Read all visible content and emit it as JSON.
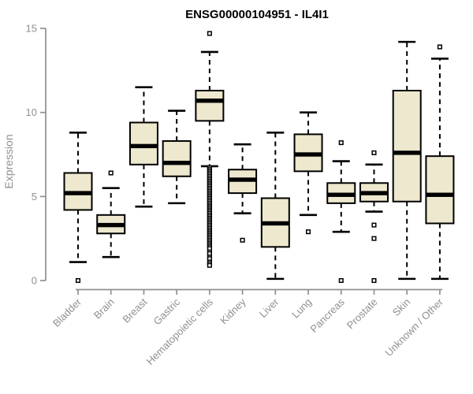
{
  "colors": {
    "background": "#ffffff",
    "box_fill": "#ede8ce",
    "box_border": "#000000",
    "median_line": "#000000",
    "whisker": "#000000",
    "outlier_stroke": "#000000",
    "outlier_fill": "#ffffff",
    "axis_line": "#909090",
    "tick_label": "#909090",
    "title_text": "#000000"
  },
  "chart_data": {
    "type": "boxplot",
    "title": "ENSG00000104951 - IL4I1",
    "xlabel": "",
    "ylabel": "Expression",
    "ylim": [
      0,
      15
    ],
    "yticks": [
      0,
      5,
      10,
      15
    ],
    "grid": "off",
    "legend": "none",
    "categories": [
      "Bladder",
      "Brain",
      "Breast",
      "Gastric",
      "Hematopoietic cells",
      "Kidney",
      "Liver",
      "Lung",
      "Pancreas",
      "Prostate",
      "Skin",
      "Unknown / Other"
    ],
    "series": [
      {
        "category": "Bladder",
        "whisker_low": 1.1,
        "q1": 4.2,
        "median": 5.2,
        "q3": 6.4,
        "whisker_high": 8.8,
        "outliers": [
          0.0
        ]
      },
      {
        "category": "Brain",
        "whisker_low": 1.4,
        "q1": 2.8,
        "median": 3.3,
        "q3": 3.9,
        "whisker_high": 5.5,
        "outliers": [
          6.4
        ]
      },
      {
        "category": "Breast",
        "whisker_low": 4.4,
        "q1": 6.9,
        "median": 8.0,
        "q3": 9.4,
        "whisker_high": 11.5,
        "outliers": []
      },
      {
        "category": "Gastric",
        "whisker_low": 4.6,
        "q1": 6.2,
        "median": 7.0,
        "q3": 8.3,
        "whisker_high": 10.1,
        "outliers": []
      },
      {
        "category": "Hematopoietic cells",
        "whisker_low": 6.8,
        "q1": 9.5,
        "median": 10.7,
        "q3": 11.3,
        "whisker_high": 13.6,
        "outliers": [
          14.7,
          6.7,
          6.6,
          6.5,
          6.4,
          6.3,
          6.2,
          6.1,
          6.0,
          5.9,
          5.8,
          5.7,
          5.6,
          5.5,
          5.4,
          5.3,
          5.2,
          5.1,
          5.0,
          4.9,
          4.8,
          4.7,
          4.6,
          4.5,
          4.4,
          4.3,
          4.2,
          4.1,
          4.0,
          3.9,
          3.8,
          3.7,
          3.6,
          3.5,
          3.4,
          3.3,
          3.2,
          3.1,
          3.0,
          2.9,
          2.8,
          2.7,
          2.6,
          2.5,
          2.4,
          2.3,
          2.2,
          2.1,
          2.0,
          1.9,
          1.7,
          1.6,
          1.4,
          1.3,
          1.1,
          1.0,
          0.9
        ]
      },
      {
        "category": "Kidney",
        "whisker_low": 4.0,
        "q1": 5.2,
        "median": 6.0,
        "q3": 6.6,
        "whisker_high": 8.1,
        "outliers": [
          2.4
        ]
      },
      {
        "category": "Liver",
        "whisker_low": 0.1,
        "q1": 2.0,
        "median": 3.4,
        "q3": 4.9,
        "whisker_high": 8.8,
        "outliers": []
      },
      {
        "category": "Lung",
        "whisker_low": 3.9,
        "q1": 6.5,
        "median": 7.5,
        "q3": 8.7,
        "whisker_high": 10.0,
        "outliers": [
          2.9
        ]
      },
      {
        "category": "Pancreas",
        "whisker_low": 2.9,
        "q1": 4.6,
        "median": 5.1,
        "q3": 5.8,
        "whisker_high": 7.1,
        "outliers": [
          8.2,
          0.0
        ]
      },
      {
        "category": "Prostate",
        "whisker_low": 4.1,
        "q1": 4.7,
        "median": 5.2,
        "q3": 5.8,
        "whisker_high": 6.9,
        "outliers": [
          7.6,
          3.3,
          2.5,
          0.0
        ]
      },
      {
        "category": "Skin",
        "whisker_low": 0.1,
        "q1": 4.7,
        "median": 7.6,
        "q3": 11.3,
        "whisker_high": 14.2,
        "outliers": []
      },
      {
        "category": "Unknown / Other",
        "whisker_low": 0.1,
        "q1": 3.4,
        "median": 5.1,
        "q3": 7.4,
        "whisker_high": 13.2,
        "outliers": [
          13.9
        ]
      }
    ]
  }
}
